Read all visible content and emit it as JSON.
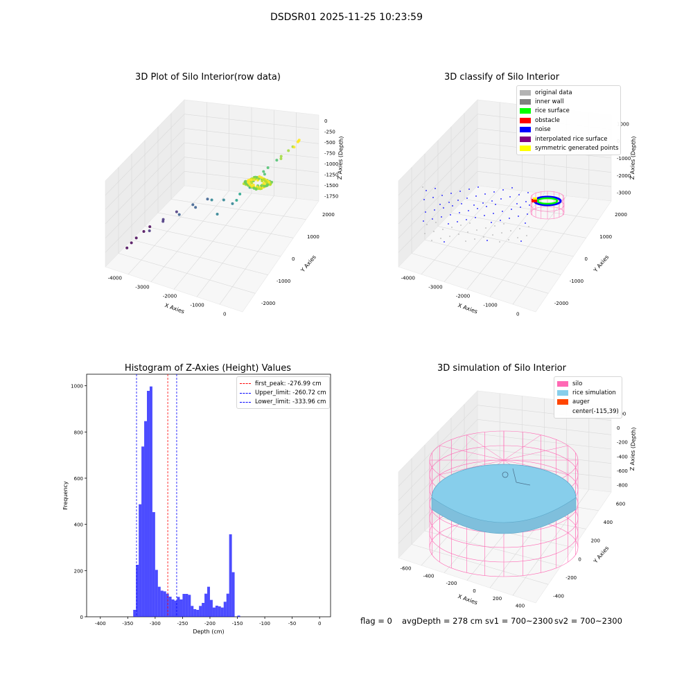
{
  "figure": {
    "title": "DSDSR01 2025-11-25 10:23:59",
    "status": {
      "flag": "flag = 0",
      "avg_depth": "avgDepth = 278 cm",
      "sv1": "sv1 = 700~2300",
      "sv2": "sv2 = 700~2300"
    }
  },
  "plots": {
    "raw": {
      "title": "3D Plot of Silo Interior(row data)",
      "xlabel": "X Axies",
      "ylabel": "Y Axies",
      "zlabel": "Z Axies (Depth)",
      "x_ticks": [
        "-4000",
        "-3000",
        "-2000",
        "-1000",
        "0"
      ],
      "y_ticks": [
        "-2000",
        "-1000",
        "0",
        "1000",
        "2000"
      ],
      "z_ticks": [
        "0",
        "-250",
        "-500",
        "-750",
        "-1000",
        "-1250",
        "-1500",
        "-1750"
      ]
    },
    "classify": {
      "title": "3D classify of Silo Interior",
      "xlabel": "X Axies",
      "ylabel": "Y Axies",
      "zlabel": "Z Axies (Depth)",
      "x_ticks": [
        "-4000",
        "-3000",
        "-2000",
        "-1000",
        "0"
      ],
      "y_ticks": [
        "-2000",
        "-1000",
        "0",
        "1000",
        "2000"
      ],
      "z_ticks": [
        "1000",
        "0",
        "-1000",
        "-2000",
        "-3000"
      ],
      "legend": [
        {
          "label": "original data",
          "color": "#b3b3b3"
        },
        {
          "label": "inner wall",
          "color": "#808080"
        },
        {
          "label": "rice surface",
          "color": "#00ff00"
        },
        {
          "label": "obstacle",
          "color": "#ff0000"
        },
        {
          "label": "noise",
          "color": "#0000ff"
        },
        {
          "label": "interpolated rice surface",
          "color": "#800080"
        },
        {
          "label": "symmetric generated points",
          "color": "#ffff00"
        }
      ]
    },
    "histogram": {
      "title": "Histogram of Z-Axies (Height) Values",
      "xlabel": "Depth (cm)",
      "ylabel": "Frequency",
      "x_ticks": [
        "-400",
        "-350",
        "-300",
        "-250",
        "-200",
        "-150",
        "-100",
        "-50",
        "0"
      ],
      "y_ticks": [
        "0",
        "200",
        "400",
        "600",
        "800",
        "1000"
      ],
      "legend": [
        {
          "label": "first_peak: -276.99 cm",
          "color": "#ff0000"
        },
        {
          "label": "Upper_limit: -260.72 cm",
          "color": "#0000ff"
        },
        {
          "label": "Lower_limit: -333.96 cm",
          "color": "#0000ff"
        }
      ]
    },
    "simulation": {
      "title": "3D simulation of Silo Interior",
      "xlabel": "X Axies",
      "ylabel": "Y Axies",
      "zlabel": "Z Axies (Depth)",
      "x_ticks": [
        "-600",
        "-400",
        "-200",
        "0",
        "200",
        "400"
      ],
      "y_ticks": [
        "-400",
        "-200",
        "0",
        "200",
        "400",
        "600"
      ],
      "z_ticks": [
        "200",
        "0",
        "-200",
        "-400",
        "-600",
        "-800"
      ],
      "legend": [
        {
          "label": "silo",
          "color": "#ff69b4"
        },
        {
          "label": "rice simulation",
          "color": "#87ceeb"
        },
        {
          "label": "auger",
          "color": "#ff4500"
        },
        {
          "label": "center(-115,39)",
          "color": ""
        }
      ]
    }
  },
  "chart_data": [
    {
      "type": "scatter",
      "chart": "3d",
      "title": "3D Plot of Silo Interior(row data)",
      "xlabel": "X Axies",
      "ylabel": "Y Axies",
      "zlabel": "Z Axies (Depth)",
      "xlim": [
        -4200,
        500
      ],
      "ylim": [
        -2500,
        2500
      ],
      "zlim": [
        -1900,
        100
      ],
      "colormap": "viridis",
      "grid": true,
      "series": [
        {
          "x": [
            -4000,
            -3950,
            -3900,
            -3800,
            -3700,
            -3550,
            -3400,
            -3300,
            -3100,
            -2900,
            -2700,
            -2500,
            -2300,
            -2100,
            -1900,
            -1800,
            -1650,
            -1500,
            -1400,
            -1300,
            -1200,
            -1100,
            -1000,
            -900,
            -800,
            -700,
            -600,
            -500,
            -400,
            -300,
            -200,
            -150,
            -100,
            -50
          ],
          "y": [
            -1500,
            -1000,
            -1400,
            -800,
            -600,
            -900,
            -300,
            -500,
            0,
            -200,
            300,
            100,
            500,
            400,
            800,
            200,
            900,
            1100,
            700,
            1300,
            1500,
            1000,
            1700,
            1800,
            1400,
            2000,
            2100,
            1900,
            2200,
            2300,
            2200,
            2350,
            2300,
            2250
          ],
          "z": [
            -1800,
            -1750,
            -1700,
            -1650,
            -1600,
            -1550,
            -1500,
            -1450,
            -1400,
            -1350,
            -1300,
            -1250,
            -1200,
            -1150,
            -1300,
            -1350,
            -1400,
            -1250,
            -1200,
            -1100,
            -1050,
            -1000,
            -950,
            -900,
            -850,
            -800,
            -750,
            -700,
            -650,
            -600,
            -550,
            -500,
            -450,
            -400
          ]
        }
      ]
    },
    {
      "type": "scatter",
      "chart": "3d",
      "title": "3D classify of Silo Interior",
      "xlabel": "X Axies",
      "ylabel": "Y Axies",
      "zlabel": "Z Axies (Depth)",
      "xlim": [
        -4200,
        500
      ],
      "ylim": [
        -2500,
        2500
      ],
      "zlim": [
        -3500,
        1500
      ],
      "legend": "top-right",
      "series": [
        {
          "name": "original data",
          "points": "scattered"
        },
        {
          "name": "inner wall",
          "points": "scattered"
        },
        {
          "name": "rice surface",
          "points": "ring at far end"
        },
        {
          "name": "obstacle",
          "points": "few"
        },
        {
          "name": "noise",
          "points": "scattered"
        },
        {
          "name": "interpolated rice surface",
          "points": "ring"
        },
        {
          "name": "symmetric generated points",
          "points": "ring"
        }
      ]
    },
    {
      "type": "bar",
      "chart": "histogram",
      "title": "Histogram of Z-Axies (Height) Values",
      "xlabel": "Depth (cm)",
      "ylabel": "Frequency",
      "xlim": [
        -425,
        20
      ],
      "ylim": [
        0,
        1050
      ],
      "bin_width": 5,
      "bins_start": -340,
      "values": [
        30,
        225,
        487,
        737,
        847,
        978,
        997,
        453,
        203,
        130,
        113,
        110,
        100,
        87,
        75,
        70,
        86,
        75,
        99,
        99,
        95,
        47,
        33,
        30,
        47,
        60,
        100,
        130,
        73,
        40,
        48,
        45,
        40,
        65,
        100,
        357,
        193,
        0,
        5
      ],
      "vlines": [
        {
          "label": "first_peak: -276.99 cm",
          "x": -276.99,
          "color": "#ff0000"
        },
        {
          "label": "Upper_limit: -260.72 cm",
          "x": -260.72,
          "color": "#0000ff"
        },
        {
          "label": "Lower_limit: -333.96 cm",
          "x": -333.96,
          "color": "#0000ff"
        }
      ],
      "legend": "top-right"
    },
    {
      "type": "surface",
      "chart": "3d",
      "title": "3D simulation of Silo Interior",
      "xlabel": "X Axies",
      "ylabel": "Y Axies",
      "zlabel": "Z Axies (Depth)",
      "xlim": [
        -700,
        500
      ],
      "ylim": [
        -500,
        700
      ],
      "zlim": [
        -850,
        350
      ],
      "series": [
        {
          "name": "silo",
          "shape": "cylinder wireframe"
        },
        {
          "name": "rice simulation",
          "shape": "surface"
        },
        {
          "name": "auger",
          "shape": "marker"
        },
        {
          "name": "center(-115,39)",
          "x": -115,
          "y": 39
        }
      ],
      "legend": "top-right"
    }
  ]
}
